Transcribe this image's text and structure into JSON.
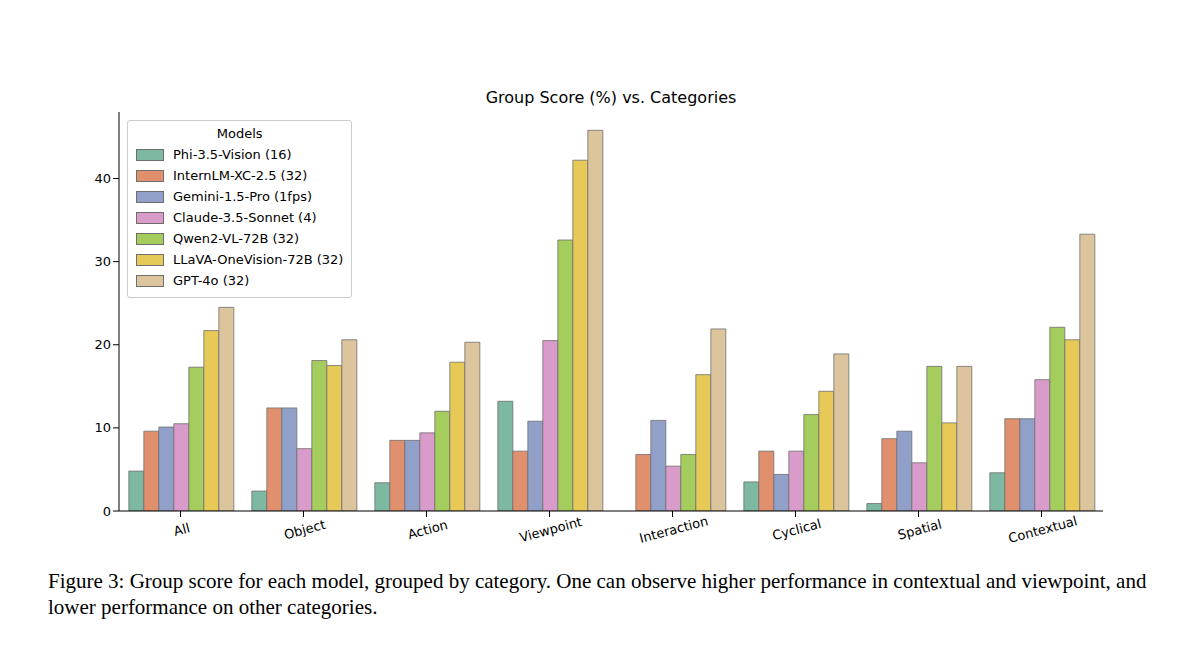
{
  "chart_data": {
    "type": "bar",
    "title": "Group Score (%) vs. Categories",
    "categories": [
      "All",
      "Object",
      "Action",
      "Viewpoint",
      "Interaction",
      "Cyclical",
      "Spatial",
      "Contextual"
    ],
    "series": [
      {
        "name": "Phi-3.5-Vision (16)",
        "color": "#7db8a0",
        "values": [
          4.8,
          2.4,
          3.4,
          13.2,
          0,
          3.5,
          0.9,
          4.6
        ]
      },
      {
        "name": "InternLM-XC-2.5 (32)",
        "color": "#e0906c",
        "values": [
          9.6,
          12.4,
          8.5,
          7.2,
          6.8,
          7.2,
          8.7,
          11.1
        ]
      },
      {
        "name": "Gemini-1.5-Pro (1fps)",
        "color": "#90a0c8",
        "values": [
          10.1,
          12.4,
          8.5,
          10.8,
          10.9,
          4.4,
          9.6,
          11.1
        ]
      },
      {
        "name": "Claude-3.5-Sonnet (4)",
        "color": "#d99bc9",
        "values": [
          10.5,
          7.5,
          9.4,
          20.5,
          5.4,
          7.2,
          5.8,
          15.8
        ]
      },
      {
        "name": "Qwen2-VL-72B (32)",
        "color": "#a5cd5d",
        "values": [
          17.3,
          18.1,
          12.0,
          32.6,
          6.8,
          11.6,
          17.4,
          22.1
        ]
      },
      {
        "name": "LLaVA-OneVision-72B (32)",
        "color": "#e6c956",
        "values": [
          21.7,
          17.5,
          17.9,
          42.2,
          16.4,
          14.4,
          10.6,
          20.6
        ]
      },
      {
        "name": "GPT-4o (32)",
        "color": "#dcc59c",
        "values": [
          24.5,
          20.6,
          20.3,
          45.8,
          21.9,
          18.9,
          17.4,
          33.3
        ]
      }
    ],
    "ylim": [
      0,
      48
    ],
    "yticks": [
      0,
      10,
      20,
      30,
      40
    ],
    "grid": false,
    "legend": "top-left",
    "legend_title": "Models",
    "caption": "Figure 3: Group score for each model, grouped by category. One can observe higher performance in contextual and viewpoint, and lower performance on other categories."
  }
}
